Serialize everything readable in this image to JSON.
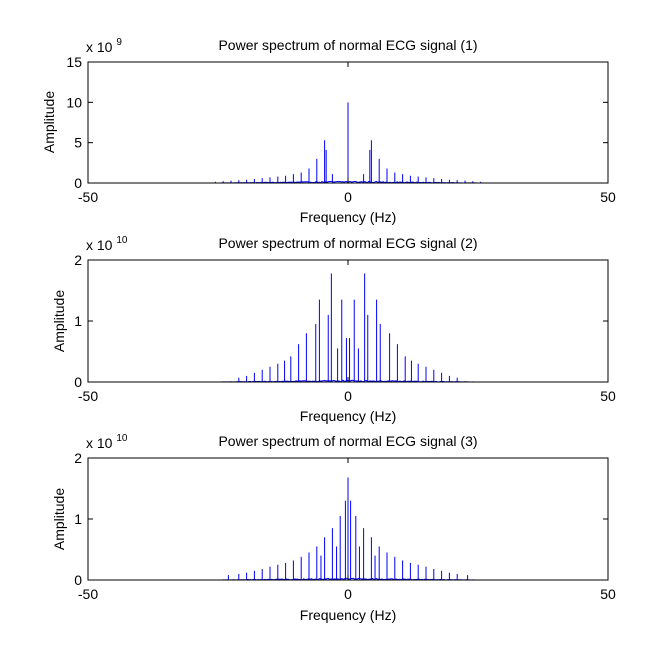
{
  "chart_data": [
    {
      "type": "line",
      "title": "Power spectrum of normal ECG signal (1)",
      "xlabel": "Frequency (Hz)",
      "ylabel": "Amplitude",
      "xlim": [
        -50,
        50
      ],
      "ylim": [
        0,
        15
      ],
      "xticks": [
        "-50",
        "0",
        "50"
      ],
      "yticks": [
        "0",
        "5",
        "10",
        "15"
      ],
      "multiplier_base": "x 10",
      "multiplier_exp": "9",
      "color": "#0000ff",
      "grid": false,
      "series": [
        {
          "peaks": [
            [
              0,
              10
            ],
            [
              -4.5,
              5.3
            ],
            [
              4.5,
              5.3
            ],
            [
              -4.2,
              4.1
            ],
            [
              4.2,
              4.1
            ],
            [
              -6,
              3.0
            ],
            [
              6,
              3.0
            ],
            [
              -7.5,
              1.8
            ],
            [
              7.5,
              1.8
            ],
            [
              -3,
              1.1
            ],
            [
              3,
              1.1
            ],
            [
              -9,
              1.3
            ],
            [
              9,
              1.3
            ],
            [
              -10.5,
              1.1
            ],
            [
              10.5,
              1.1
            ],
            [
              -12,
              0.9
            ],
            [
              12,
              0.9
            ],
            [
              -13.5,
              0.8
            ],
            [
              13.5,
              0.8
            ],
            [
              -15,
              0.7
            ],
            [
              15,
              0.7
            ],
            [
              -16.5,
              0.6
            ],
            [
              16.5,
              0.6
            ],
            [
              -18,
              0.5
            ],
            [
              18,
              0.5
            ],
            [
              -19.5,
              0.4
            ],
            [
              19.5,
              0.4
            ],
            [
              -21,
              0.35
            ],
            [
              21,
              0.35
            ],
            [
              -22.5,
              0.3
            ],
            [
              22.5,
              0.3
            ],
            [
              -24,
              0.22
            ],
            [
              24,
              0.22
            ],
            [
              -25.5,
              0.15
            ],
            [
              25.5,
              0.15
            ]
          ]
        }
      ]
    },
    {
      "type": "line",
      "title": "Power spectrum of normal ECG signal (2)",
      "xlabel": "Frequency (Hz)",
      "ylabel": "Amplitude",
      "xlim": [
        -50,
        50
      ],
      "ylim": [
        0,
        2
      ],
      "xticks": [
        "-50",
        "0",
        "50"
      ],
      "yticks": [
        "0",
        "1",
        "2"
      ],
      "multiplier_base": "x 10",
      "multiplier_exp": "10",
      "color": "#0000ff",
      "grid": false,
      "series": [
        {
          "peaks": [
            [
              -3.2,
              1.78
            ],
            [
              3.2,
              1.78
            ],
            [
              -1.2,
              1.35
            ],
            [
              1.2,
              1.35
            ],
            [
              -5.5,
              1.35
            ],
            [
              5.5,
              1.35
            ],
            [
              -6.2,
              0.95
            ],
            [
              6.2,
              0.95
            ],
            [
              -3.8,
              1.1
            ],
            [
              3.8,
              1.1
            ],
            [
              -8,
              0.8
            ],
            [
              8,
              0.8
            ],
            [
              -0.3,
              0.72
            ],
            [
              0.3,
              0.72
            ],
            [
              -2,
              0.55
            ],
            [
              2,
              0.55
            ],
            [
              -9.5,
              0.62
            ],
            [
              9.5,
              0.62
            ],
            [
              -11,
              0.42
            ],
            [
              11,
              0.42
            ],
            [
              -12.2,
              0.35
            ],
            [
              12.2,
              0.35
            ],
            [
              -13.5,
              0.3
            ],
            [
              13.5,
              0.3
            ],
            [
              -15,
              0.25
            ],
            [
              15,
              0.25
            ],
            [
              -16.5,
              0.2
            ],
            [
              16.5,
              0.2
            ],
            [
              -18,
              0.15
            ],
            [
              18,
              0.15
            ],
            [
              -19.5,
              0.1
            ],
            [
              19.5,
              0.1
            ],
            [
              -21,
              0.07
            ],
            [
              21,
              0.07
            ]
          ]
        }
      ]
    },
    {
      "type": "line",
      "title": "Power spectrum of normal ECG signal (3)",
      "xlabel": "Frequency (Hz)",
      "ylabel": "Amplitude",
      "xlim": [
        -50,
        50
      ],
      "ylim": [
        0,
        2
      ],
      "xticks": [
        "-50",
        "0",
        "50"
      ],
      "yticks": [
        "0",
        "1",
        "2"
      ],
      "multiplier_base": "x 10",
      "multiplier_exp": "10",
      "color": "#0000ff",
      "grid": false,
      "series": [
        {
          "peaks": [
            [
              0,
              1.68
            ],
            [
              -1.5,
              1.05
            ],
            [
              1.5,
              1.05
            ],
            [
              -0.5,
              1.3
            ],
            [
              0.5,
              1.3
            ],
            [
              -3,
              0.85
            ],
            [
              3,
              0.85
            ],
            [
              -4.5,
              0.7
            ],
            [
              4.5,
              0.7
            ],
            [
              -2.2,
              0.55
            ],
            [
              2.2,
              0.55
            ],
            [
              -6,
              0.55
            ],
            [
              6,
              0.55
            ],
            [
              -5.2,
              0.4
            ],
            [
              5.2,
              0.4
            ],
            [
              -7.5,
              0.45
            ],
            [
              7.5,
              0.45
            ],
            [
              -9,
              0.38
            ],
            [
              9,
              0.38
            ],
            [
              -10.5,
              0.32
            ],
            [
              10.5,
              0.32
            ],
            [
              -12,
              0.28
            ],
            [
              12,
              0.28
            ],
            [
              -13.5,
              0.25
            ],
            [
              13.5,
              0.25
            ],
            [
              -15,
              0.22
            ],
            [
              15,
              0.22
            ],
            [
              -16.5,
              0.18
            ],
            [
              16.5,
              0.18
            ],
            [
              -18,
              0.15
            ],
            [
              18,
              0.15
            ],
            [
              -19.5,
              0.12
            ],
            [
              19.5,
              0.12
            ],
            [
              -21,
              0.1
            ],
            [
              21,
              0.1
            ],
            [
              -23,
              0.08
            ],
            [
              23,
              0.08
            ]
          ]
        }
      ]
    }
  ]
}
